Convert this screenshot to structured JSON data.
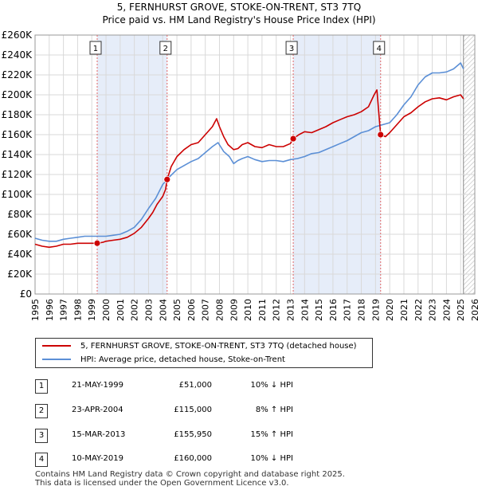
{
  "title_line1": "5, FERNHURST GROVE, STOKE-ON-TRENT, ST3 7TQ",
  "title_line2": "Price paid vs. HM Land Registry's House Price Index (HPI)",
  "colors": {
    "price": "#cc0000",
    "hpi": "#5b8fd6",
    "shade": "#e6edf9",
    "grid": "#d9d9d9",
    "vline": "#e06666"
  },
  "chart_data": {
    "type": "line",
    "xlim": [
      1995,
      2026
    ],
    "ylim": [
      0,
      260000
    ],
    "x_ticks": [
      1995,
      1996,
      1997,
      1998,
      1999,
      2000,
      2001,
      2002,
      2003,
      2004,
      2005,
      2006,
      2007,
      2008,
      2009,
      2010,
      2011,
      2012,
      2013,
      2014,
      2015,
      2016,
      2017,
      2018,
      2019,
      2020,
      2021,
      2022,
      2023,
      2024,
      2025,
      2026
    ],
    "y_ticks": [
      {
        "value": 0,
        "label": "£0"
      },
      {
        "value": 20000,
        "label": "£20K"
      },
      {
        "value": 40000,
        "label": "£40K"
      },
      {
        "value": 60000,
        "label": "£60K"
      },
      {
        "value": 80000,
        "label": "£80K"
      },
      {
        "value": 100000,
        "label": "£100K"
      },
      {
        "value": 120000,
        "label": "£120K"
      },
      {
        "value": 140000,
        "label": "£140K"
      },
      {
        "value": 160000,
        "label": "£160K"
      },
      {
        "value": 180000,
        "label": "£180K"
      },
      {
        "value": 200000,
        "label": "£200K"
      },
      {
        "value": 220000,
        "label": "£220K"
      },
      {
        "value": 240000,
        "label": "£240K"
      },
      {
        "value": 260000,
        "label": "£260K"
      }
    ],
    "shaded_ranges": [
      [
        1999.38,
        2004.31
      ],
      [
        2013.2,
        2019.36
      ]
    ],
    "hatched_from": 2025.2,
    "series": [
      {
        "name": "5, FERNHURST GROVE, STOKE-ON-TRENT, ST3 7TQ (detached house)",
        "color": "#cc0000",
        "x": [
          1995,
          1995.5,
          1996,
          1996.5,
          1997,
          1997.5,
          1998,
          1998.5,
          1999,
          1999.38,
          1999.8,
          2000,
          2000.5,
          2001,
          2001.5,
          2002,
          2002.5,
          2003,
          2003.3,
          2003.6,
          2004,
          2004.2,
          2004.31,
          2004.6,
          2005,
          2005.5,
          2006,
          2006.5,
          2007,
          2007.5,
          2007.8,
          2008,
          2008.3,
          2008.6,
          2009,
          2009.3,
          2009.6,
          2010,
          2010.5,
          2011,
          2011.5,
          2012,
          2012.5,
          2013,
          2013.2,
          2013.6,
          2014,
          2014.5,
          2015,
          2015.5,
          2016,
          2016.5,
          2017,
          2017.5,
          2018,
          2018.5,
          2018.9,
          2019.1,
          2019.3,
          2019.36,
          2019.7,
          2020,
          2020.5,
          2021,
          2021.5,
          2022,
          2022.5,
          2023,
          2023.5,
          2024,
          2024.5,
          2025,
          2025.2
        ],
        "y": [
          50000,
          48000,
          47000,
          48000,
          50000,
          50000,
          51000,
          51000,
          51000,
          51000,
          52000,
          53000,
          54000,
          55000,
          57000,
          61000,
          67000,
          76000,
          82000,
          90000,
          98000,
          105000,
          115000,
          128000,
          138000,
          145000,
          150000,
          152000,
          160000,
          168000,
          176000,
          168000,
          158000,
          150000,
          145000,
          146000,
          150000,
          152000,
          148000,
          147000,
          150000,
          148000,
          148000,
          151000,
          155950,
          160000,
          163000,
          162000,
          165000,
          168000,
          172000,
          175000,
          178000,
          180000,
          183000,
          188000,
          200000,
          205000,
          170000,
          160000,
          158000,
          162000,
          170000,
          178000,
          182000,
          188000,
          193000,
          196000,
          197000,
          195000,
          198000,
          200000,
          196000
        ]
      },
      {
        "name": "HPI: Average price, detached house, Stoke-on-Trent",
        "color": "#5b8fd6",
        "x": [
          1995,
          1995.5,
          1996,
          1996.5,
          1997,
          1997.5,
          1998,
          1998.5,
          1999,
          1999.5,
          2000,
          2000.5,
          2001,
          2001.5,
          2002,
          2002.5,
          2003,
          2003.5,
          2004,
          2004.5,
          2005,
          2005.5,
          2006,
          2006.5,
          2007,
          2007.5,
          2007.9,
          2008.3,
          2008.7,
          2009,
          2009.3,
          2009.6,
          2010,
          2010.5,
          2011,
          2011.5,
          2012,
          2012.5,
          2013,
          2013.5,
          2014,
          2014.5,
          2015,
          2015.5,
          2016,
          2016.5,
          2017,
          2017.5,
          2018,
          2018.5,
          2019,
          2019.5,
          2020,
          2020.5,
          2021,
          2021.5,
          2022,
          2022.5,
          2023,
          2023.5,
          2024,
          2024.5,
          2025,
          2025.2
        ],
        "y": [
          56000,
          54000,
          53000,
          53000,
          55000,
          56000,
          57000,
          58000,
          58000,
          58000,
          58000,
          59000,
          60000,
          63000,
          67000,
          75000,
          86000,
          96000,
          110000,
          118000,
          125000,
          129000,
          133000,
          136000,
          142000,
          148000,
          152000,
          143000,
          138000,
          131000,
          134000,
          136000,
          138000,
          135000,
          133000,
          134000,
          134000,
          133000,
          135000,
          136000,
          138000,
          141000,
          142000,
          145000,
          148000,
          151000,
          154000,
          158000,
          162000,
          164000,
          168000,
          170000,
          172000,
          180000,
          190000,
          198000,
          210000,
          218000,
          222000,
          222000,
          223000,
          226000,
          232000,
          226000
        ]
      }
    ],
    "sale_points": [
      {
        "label": "1",
        "x": 1999.38,
        "y": 51000
      },
      {
        "label": "2",
        "x": 2004.31,
        "y": 115000
      },
      {
        "label": "3",
        "x": 2013.2,
        "y": 155950
      },
      {
        "label": "4",
        "x": 2019.36,
        "y": 160000
      }
    ]
  },
  "legend": {
    "price_label": "5, FERNHURST GROVE, STOKE-ON-TRENT, ST3 7TQ (detached house)",
    "hpi_label": "HPI: Average price, detached house, Stoke-on-Trent"
  },
  "sales": [
    {
      "num": "1",
      "date": "21-MAY-1999",
      "price": "£51,000",
      "hpi": "10% ↓ HPI"
    },
    {
      "num": "2",
      "date": "23-APR-2004",
      "price": "£115,000",
      "hpi": "8% ↑ HPI"
    },
    {
      "num": "3",
      "date": "15-MAR-2013",
      "price": "£155,950",
      "hpi": "15% ↑ HPI"
    },
    {
      "num": "4",
      "date": "10-MAY-2019",
      "price": "£160,000",
      "hpi": "10% ↓ HPI"
    }
  ],
  "footer": {
    "line1": "Contains HM Land Registry data © Crown copyright and database right 2025.",
    "line2": "This data is licensed under the Open Government Licence v3.0."
  }
}
